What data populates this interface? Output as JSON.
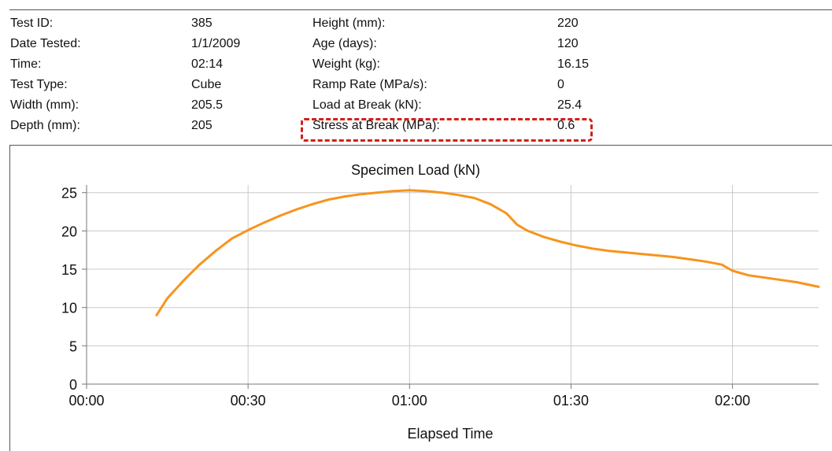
{
  "specimen_info": {
    "rows": [
      {
        "label": "Test ID:",
        "value": "385",
        "label2": "Height (mm):",
        "value2": "220"
      },
      {
        "label": "Date Tested:",
        "value": "1/1/2009",
        "label2": "Age (days):",
        "value2": "120"
      },
      {
        "label": "Time:",
        "value": "02:14",
        "label2": "Weight (kg):",
        "value2": "16.15"
      },
      {
        "label": "Test Type:",
        "value": "Cube",
        "label2": "Ramp Rate (MPa/s):",
        "value2": "0"
      },
      {
        "label": "Width (mm):",
        "value": "205.5",
        "label2": "Load at Break (kN):",
        "value2": "25.4"
      },
      {
        "label": "Depth (mm):",
        "value": "205",
        "label2": "Stress at Break (MPa):",
        "value2": "0.6"
      }
    ],
    "highlight_color": "#d0201a"
  },
  "chart_data": {
    "type": "line",
    "title": "Specimen Load (kN)",
    "xlabel": "Elapsed Time",
    "ylabel": "",
    "x_unit": "seconds",
    "xlim": [
      0,
      136
    ],
    "ylim": [
      0,
      26
    ],
    "x_ticks": [
      {
        "value": 0,
        "label": "00:00"
      },
      {
        "value": 30,
        "label": "00:30"
      },
      {
        "value": 60,
        "label": "01:00"
      },
      {
        "value": 90,
        "label": "01:30"
      },
      {
        "value": 120,
        "label": "02:00"
      }
    ],
    "y_ticks": [
      0,
      5,
      10,
      15,
      20,
      25
    ],
    "grid": true,
    "line_color": "#f7941d",
    "series": [
      {
        "name": "",
        "x": [
          13,
          15,
          18,
          21,
          24,
          27,
          30,
          33,
          36,
          39,
          42,
          45,
          48,
          51,
          54,
          57,
          60,
          63,
          66,
          69,
          72,
          75,
          78,
          80,
          82,
          85,
          88,
          91,
          94,
          97,
          100,
          103,
          106,
          109,
          112,
          115,
          118,
          120,
          123,
          126,
          129,
          132,
          136
        ],
        "y": [
          9,
          11.2,
          13.5,
          15.6,
          17.4,
          19,
          20.1,
          21.1,
          22,
          22.8,
          23.5,
          24.1,
          24.5,
          24.8,
          25,
          25.2,
          25.3,
          25.2,
          25,
          24.7,
          24.3,
          23.5,
          22.3,
          20.8,
          20,
          19.2,
          18.6,
          18.1,
          17.7,
          17.4,
          17.2,
          17,
          16.8,
          16.6,
          16.3,
          16,
          15.6,
          14.8,
          14.2,
          13.9,
          13.6,
          13.3,
          12.7
        ]
      }
    ]
  }
}
